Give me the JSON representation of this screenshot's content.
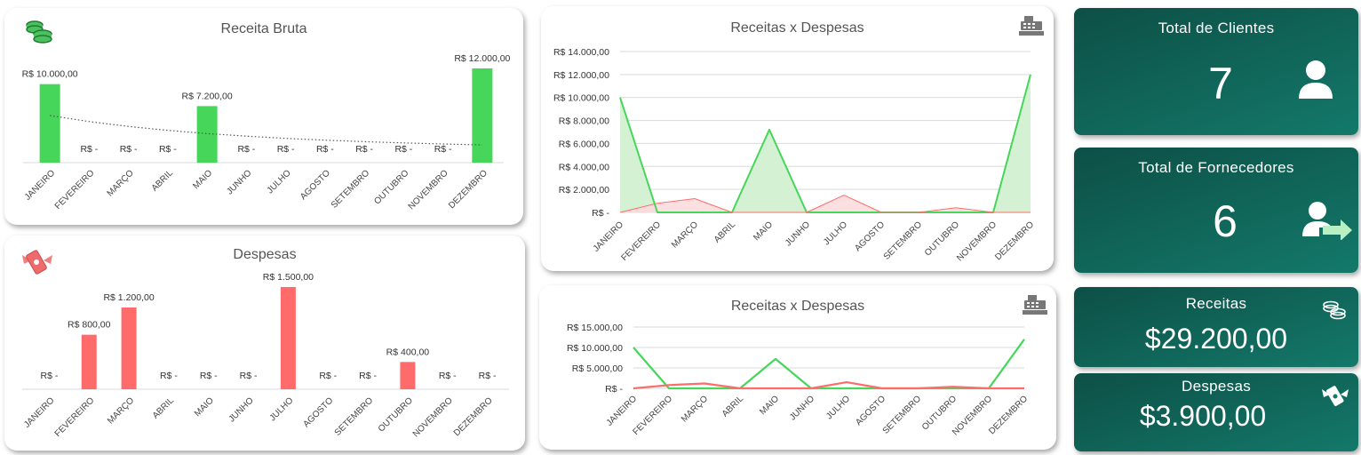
{
  "colors": {
    "revenue": "#45d65a",
    "expense": "#ff6b6b",
    "revenue_area": "#d4f2d3",
    "expense_area": "#fbd9dc",
    "kpi_dark": "#0d4f46",
    "kpi_light": "#13796a"
  },
  "icons": {
    "revenue_card": "coins-icon",
    "expense_card": "money-with-wings-icon",
    "cash_register": "cash-register-icon",
    "clients": "user-icon",
    "suppliers": "user-arrow-icon"
  },
  "months": [
    "JANEIRO",
    "FEVEREIRO",
    "MARÇO",
    "ABRIL",
    "MAIO",
    "JUNHO",
    "JULHO",
    "AGOSTO",
    "SETEMBRO",
    "OUTUBRO",
    "NOVEMBRO",
    "DEZEMBRO"
  ],
  "chart_data": [
    {
      "type": "bar",
      "title": "Receita Bruta",
      "categories": [
        "JANEIRO",
        "FEVEREIRO",
        "MARÇO",
        "ABRIL",
        "MAIO",
        "JUNHO",
        "JULHO",
        "AGOSTO",
        "SETEMBRO",
        "OUTUBRO",
        "NOVEMBRO",
        "DEZEMBRO"
      ],
      "values": [
        10000,
        0,
        0,
        0,
        7200,
        0,
        0,
        0,
        0,
        0,
        0,
        12000
      ],
      "data_labels": [
        "R$ 10.000,00",
        "R$ -",
        "R$ -",
        "R$ -",
        "R$ 7.200,00",
        "R$ -",
        "R$ -",
        "R$ -",
        "R$ -",
        "R$ -",
        "R$ -",
        "R$ 12.000,00"
      ],
      "trendline": "dotted",
      "color": "#45d65a",
      "ylim": [
        0,
        12000
      ]
    },
    {
      "type": "bar",
      "title": "Despesas",
      "categories": [
        "JANEIRO",
        "FEVEREIRO",
        "MARÇO",
        "ABRIL",
        "MAIO",
        "JUNHO",
        "JULHO",
        "AGOSTO",
        "SETEMBRO",
        "OUTUBRO",
        "NOVEMBRO",
        "DEZEMBRO"
      ],
      "values": [
        0,
        800,
        1200,
        0,
        0,
        0,
        1500,
        0,
        0,
        400,
        0,
        0
      ],
      "data_labels": [
        "R$ -",
        "R$ 800,00",
        "R$ 1.200,00",
        "R$ -",
        "R$ -",
        "R$ -",
        "R$ 1.500,00",
        "R$ -",
        "R$ -",
        "R$ 400,00",
        "R$ -",
        "R$ -"
      ],
      "color": "#ff6b6b",
      "ylim": [
        0,
        1500
      ]
    },
    {
      "type": "area",
      "title": "Receitas x Despesas",
      "categories": [
        "JANEIRO",
        "FEVEREIRO",
        "MARÇO",
        "ABRIL",
        "MAIO",
        "JUNHO",
        "JULHO",
        "AGOSTO",
        "SETEMBRO",
        "OUTUBRO",
        "NOVEMBRO",
        "DEZEMBRO"
      ],
      "series": [
        {
          "values": [
            10000,
            0,
            0,
            0,
            7200,
            0,
            0,
            0,
            0,
            0,
            0,
            12000
          ],
          "color": "#45d65a"
        },
        {
          "values": [
            0,
            800,
            1200,
            0,
            0,
            0,
            1500,
            0,
            0,
            400,
            0,
            0
          ],
          "color": "#ff6b6b"
        }
      ],
      "ylim": [
        0,
        14000
      ],
      "yticks": [
        0,
        2000,
        4000,
        6000,
        8000,
        10000,
        12000,
        14000
      ],
      "ytick_labels": [
        "R$ -",
        "R$ 2.000,00",
        "R$ 4.000,00",
        "R$ 6.000,00",
        "R$ 8.000,00",
        "R$ 10.000,00",
        "R$ 12.000,00",
        "R$ 14.000,00"
      ],
      "grid": true
    },
    {
      "type": "line",
      "title": "Receitas x Despesas",
      "categories": [
        "JANEIRO",
        "FEVEREIRO",
        "MARÇO",
        "ABRIL",
        "MAIO",
        "JUNHO",
        "JULHO",
        "AGOSTO",
        "SETEMBRO",
        "OUTUBRO",
        "NOVEMBRO",
        "DEZEMBRO"
      ],
      "series": [
        {
          "values": [
            10000,
            0,
            0,
            0,
            7200,
            0,
            0,
            0,
            0,
            0,
            0,
            12000
          ],
          "color": "#45d65a"
        },
        {
          "values": [
            0,
            800,
            1200,
            0,
            0,
            0,
            1500,
            0,
            0,
            400,
            0,
            0
          ],
          "color": "#ff6b6b"
        }
      ],
      "ylim": [
        0,
        15000
      ],
      "yticks": [
        0,
        5000,
        10000,
        15000
      ],
      "ytick_labels": [
        "R$ -",
        "R$ 5.000,00",
        "R$ 10.000,00",
        "R$ 15.000,00"
      ],
      "grid": true
    }
  ],
  "kpis": {
    "clientes": {
      "title": "Total de Clientes",
      "value": "7"
    },
    "fornecedores": {
      "title": "Total de Fornecedores",
      "value": "6"
    },
    "receitas": {
      "title": "Receitas",
      "value": "$29.200,00"
    },
    "despesas": {
      "title": "Despesas",
      "value": "$3.900,00"
    }
  }
}
